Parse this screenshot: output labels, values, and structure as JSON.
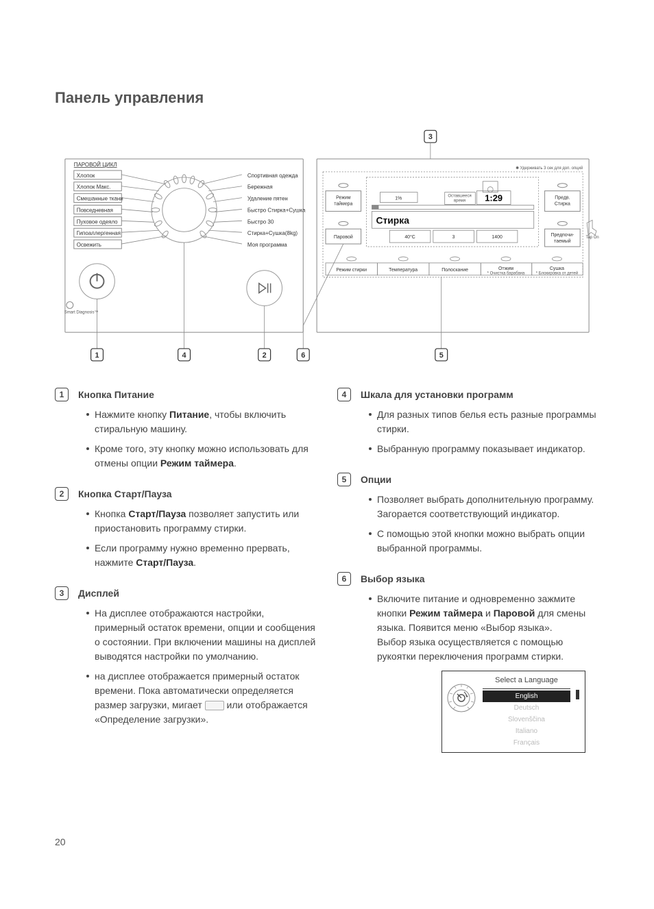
{
  "title": "Панель управления",
  "page_number": "20",
  "diagram": {
    "steam_label": "ПАРОВОЙ ЦИКЛ",
    "dial_left": [
      "Хлопок",
      "Хлопок Макс.",
      "Смешанные ткани",
      "Повседневная",
      "Пуховое одеяло",
      "Гипоаллергенная",
      "Освежить"
    ],
    "dial_right": [
      "Спортивная одежда",
      "Бережная",
      "Удаление пятен",
      "Быстро Стирка+Сушка",
      "Быстро 30",
      "Стирка+Сушка(8kg)",
      "Моя программа"
    ],
    "display_main": "Стирка",
    "display_time": "1:29",
    "display_pct": "1%",
    "display_temp": "40°C",
    "display_rinse": "3",
    "display_spin": "1400",
    "hold_note": "✱ Удерживать 3 сек для доп. опций",
    "btn_timer": "Режим\nтаймера",
    "btn_steam": "Паровой",
    "btn_prewash": "Предв.\nСтирка",
    "btn_preferred": "Предпочи-\nтаемый",
    "time_left_lbl": "Оставшееся\nвремя",
    "bottom_row": [
      "Режим стирки",
      "Температура",
      "Полоскание",
      "Отжим",
      "Сушка"
    ],
    "bottom_sub": [
      "",
      "",
      "",
      "* Очистка барабана",
      "* Блокировка от детей"
    ],
    "smart_diag": "Smart\nDiagnosis™",
    "tap_on": "Tap On",
    "refs": {
      "1": "1",
      "2": "2",
      "3": "3",
      "4": "4",
      "5": "5",
      "6": "6"
    }
  },
  "descriptions": {
    "1": {
      "title": "Кнопка Питание",
      "bullets": [
        "Нажмите кнопку <b>Питание</b>, чтобы включить стиральную машину.",
        "Кроме того, эту кнопку можно использовать для отмены опции <b>Режим таймера</b>."
      ]
    },
    "2": {
      "title": "Кнопка Старт/Пауза",
      "bullets": [
        "Кнопка <b>Старт/Пауза</b> позволяет запустить или приостановить программу стирки.",
        "Если программу нужно временно прервать, нажмите <b>Старт/Пауза</b>."
      ]
    },
    "3": {
      "title": "Дисплей",
      "bullets": [
        "На дисплее отображаются настройки, примерный остаток времени, опции и сообщения о состоянии. При включении машины на дисплей выводятся настройки по умолчанию.",
        "на дисплее отображается примерный остаток времени. Пока автоматически определяется размер загрузки, мигает <span class=\"inline-img-box\"></span> или отображается «Определение загрузки»."
      ]
    },
    "4": {
      "title": "Шкала для установки программ",
      "bullets": [
        "Для разных типов белья есть разные программы стирки.",
        "Выбранную программу показывает индикатор."
      ]
    },
    "5": {
      "title": "Опции",
      "bullets": [
        "Позволяет выбрать дополнительную программу. Загорается соответствующий индикатор.",
        "С помощью этой кнопки можно выбрать опции выбранной программы."
      ]
    },
    "6": {
      "title": "Выбор языка",
      "bullets": [
        "Включите питание и одновременно зажмите кнопки <b>Режим таймера</b> и <b>Паровой</b> для смены языка. Появится меню «Выбор языка».<br>Выбор языка осуществляется с помощью рукоятки переключения программ стирки."
      ]
    }
  },
  "language_select": {
    "header": "Select a Language",
    "options": [
      "English",
      "Deutsch",
      "Slovenščina",
      "Italiano",
      "Français"
    ],
    "selected": 0
  },
  "colors": {
    "text": "#333333",
    "muted": "#888888",
    "background": "#ffffff"
  }
}
